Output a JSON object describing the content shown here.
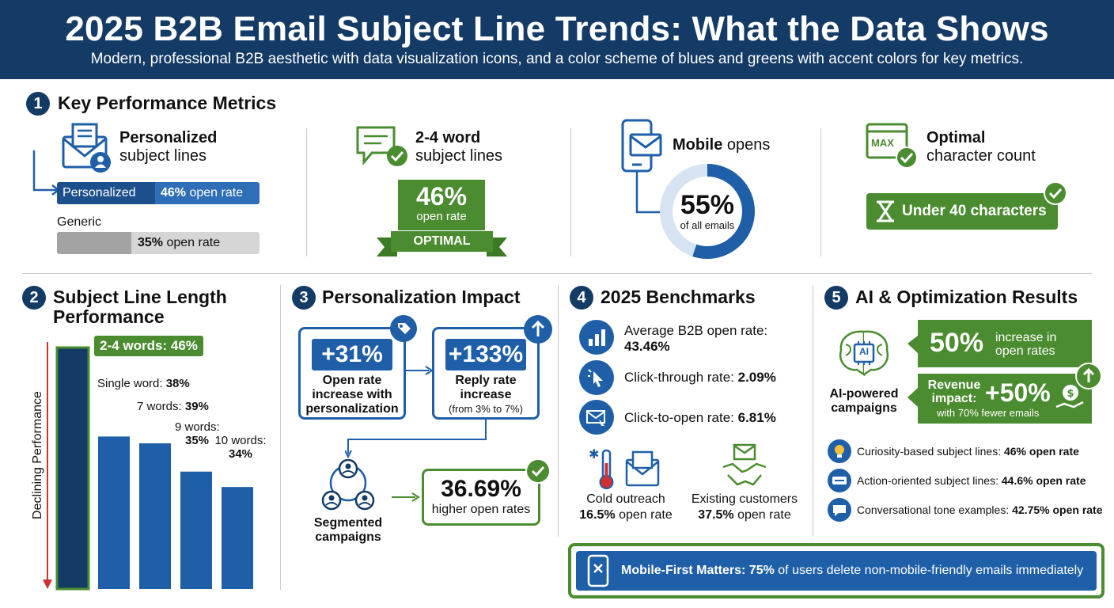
{
  "header": {
    "title": "2025 B2B Email Subject Line Trends: What the Data Shows",
    "subtitle": "Modern, professional B2B aesthetic with data visualization icons, and a color scheme of blues and greens with accent colors for key metrics."
  },
  "colors": {
    "navy": "#143a66",
    "blue": "#1f5fa8",
    "green": "#4a8c2f",
    "red": "#d03030",
    "gray": "#a3a3a3"
  },
  "section1": {
    "number": "1",
    "title": "Key Performance Metrics",
    "card1": {
      "title_bold": "Personalized",
      "title_rest": "subject lines",
      "personalized_label": "Personalized",
      "personalized_value": "46%",
      "personalized_suffix": "open rate",
      "generic_label": "Generic",
      "generic_value": "35%",
      "generic_suffix": "open rate",
      "icon": "envelope-user-icon"
    },
    "card2": {
      "title_bold": "2-4 word",
      "title_rest": "subject lines",
      "value": "46%",
      "value_label": "open rate",
      "ribbon": "OPTIMAL",
      "icon": "chat-check-icon"
    },
    "card3": {
      "title_bold": "Mobile",
      "title_rest": "opens",
      "value": "55%",
      "value_label": "of all emails",
      "fraction": 0.55,
      "icon": "phone-mail-icon"
    },
    "card4": {
      "title_bold": "Optimal",
      "title_rest": "character count",
      "max_label": "MAX",
      "badge": "Under 40 characters",
      "icon": "max-window-icon"
    }
  },
  "section2": {
    "number": "2",
    "title_line1": "Subject Line Length",
    "title_line2": "Performance",
    "axis_label": "Declining Performance",
    "bars": [
      {
        "label": "2-4 words: ",
        "value_text": "46%"
      },
      {
        "label": "Single word: ",
        "value_text": "38%"
      },
      {
        "label": "7 words: ",
        "value_text": "39%"
      },
      {
        "label": "9 words:",
        "value_text": "35%"
      },
      {
        "label": "10 words:",
        "value_text": "34%"
      }
    ]
  },
  "chart_data": {
    "type": "bar",
    "categories": [
      "2-4 words",
      "Single word",
      "7 words",
      "9 words",
      "10 words"
    ],
    "values": [
      46,
      38,
      39,
      35,
      34
    ],
    "title": "Subject Line Length Performance",
    "ylabel": "Declining Performance",
    "ylim": [
      0,
      46
    ]
  },
  "section3": {
    "number": "3",
    "title": "Personalization Impact",
    "box1": {
      "value": "+31%",
      "line1": "Open rate",
      "line2": "increase with",
      "line3": "personalization",
      "icon": "tag-icon"
    },
    "box2": {
      "value": "+133%",
      "line1": "Reply rate",
      "line2": "increase",
      "line3": "(from 3% to 7%)",
      "icon": "arrow-up-icon"
    },
    "segment": {
      "line1": "Segmented",
      "line2": "campaigns",
      "icon": "people-network-icon"
    },
    "result": {
      "value": "36.69%",
      "label": "higher open rates"
    }
  },
  "section4": {
    "number": "4",
    "title": "2025 Benchmarks",
    "rows": [
      {
        "label": "Average B2B open rate:",
        "value": "43.46%",
        "icon": "bar-chart-icon"
      },
      {
        "label": "Click-through rate: ",
        "value": "2.09%",
        "icon": "cursor-click-icon"
      },
      {
        "label": "Click-to-open rate: ",
        "value": "6.81%",
        "icon": "mail-cursor-icon"
      }
    ],
    "cold": {
      "label": "Cold outreach",
      "value": "16.5%",
      "suffix": " open rate",
      "icon": "thermometer-mail-icon"
    },
    "existing": {
      "label": "Existing customers",
      "value": "37.5%",
      "suffix": " open rate",
      "icon": "handshake-icon"
    }
  },
  "section5": {
    "number": "5",
    "title": "AI & Optimization Results",
    "ai_label_line1": "AI-powered",
    "ai_label_line2": "campaigns",
    "ai_chip": "AI",
    "stat1": {
      "value": "50%",
      "line1": "increase in",
      "line2": "open rates"
    },
    "stat2": {
      "prefix_line1": "Revenue",
      "prefix_line2": "impact:",
      "value": "+50%",
      "sub": "with 70% fewer emails"
    },
    "list": [
      {
        "label": "Curiosity-based subject lines: ",
        "value": "46% open rate",
        "icon": "lightbulb-icon"
      },
      {
        "label": "Action-oriented subject lines: ",
        "value": "44.6% open rate",
        "icon": "action-icon"
      },
      {
        "label": "Conversational tone examples: ",
        "value": "42.75% open rate",
        "icon": "chat-bubble-icon"
      }
    ]
  },
  "footer": {
    "bold": "Mobile-First Matters:",
    "value": "75%",
    "rest": " of users delete non-mobile-friendly emails immediately",
    "icon": "phone-x-icon"
  }
}
